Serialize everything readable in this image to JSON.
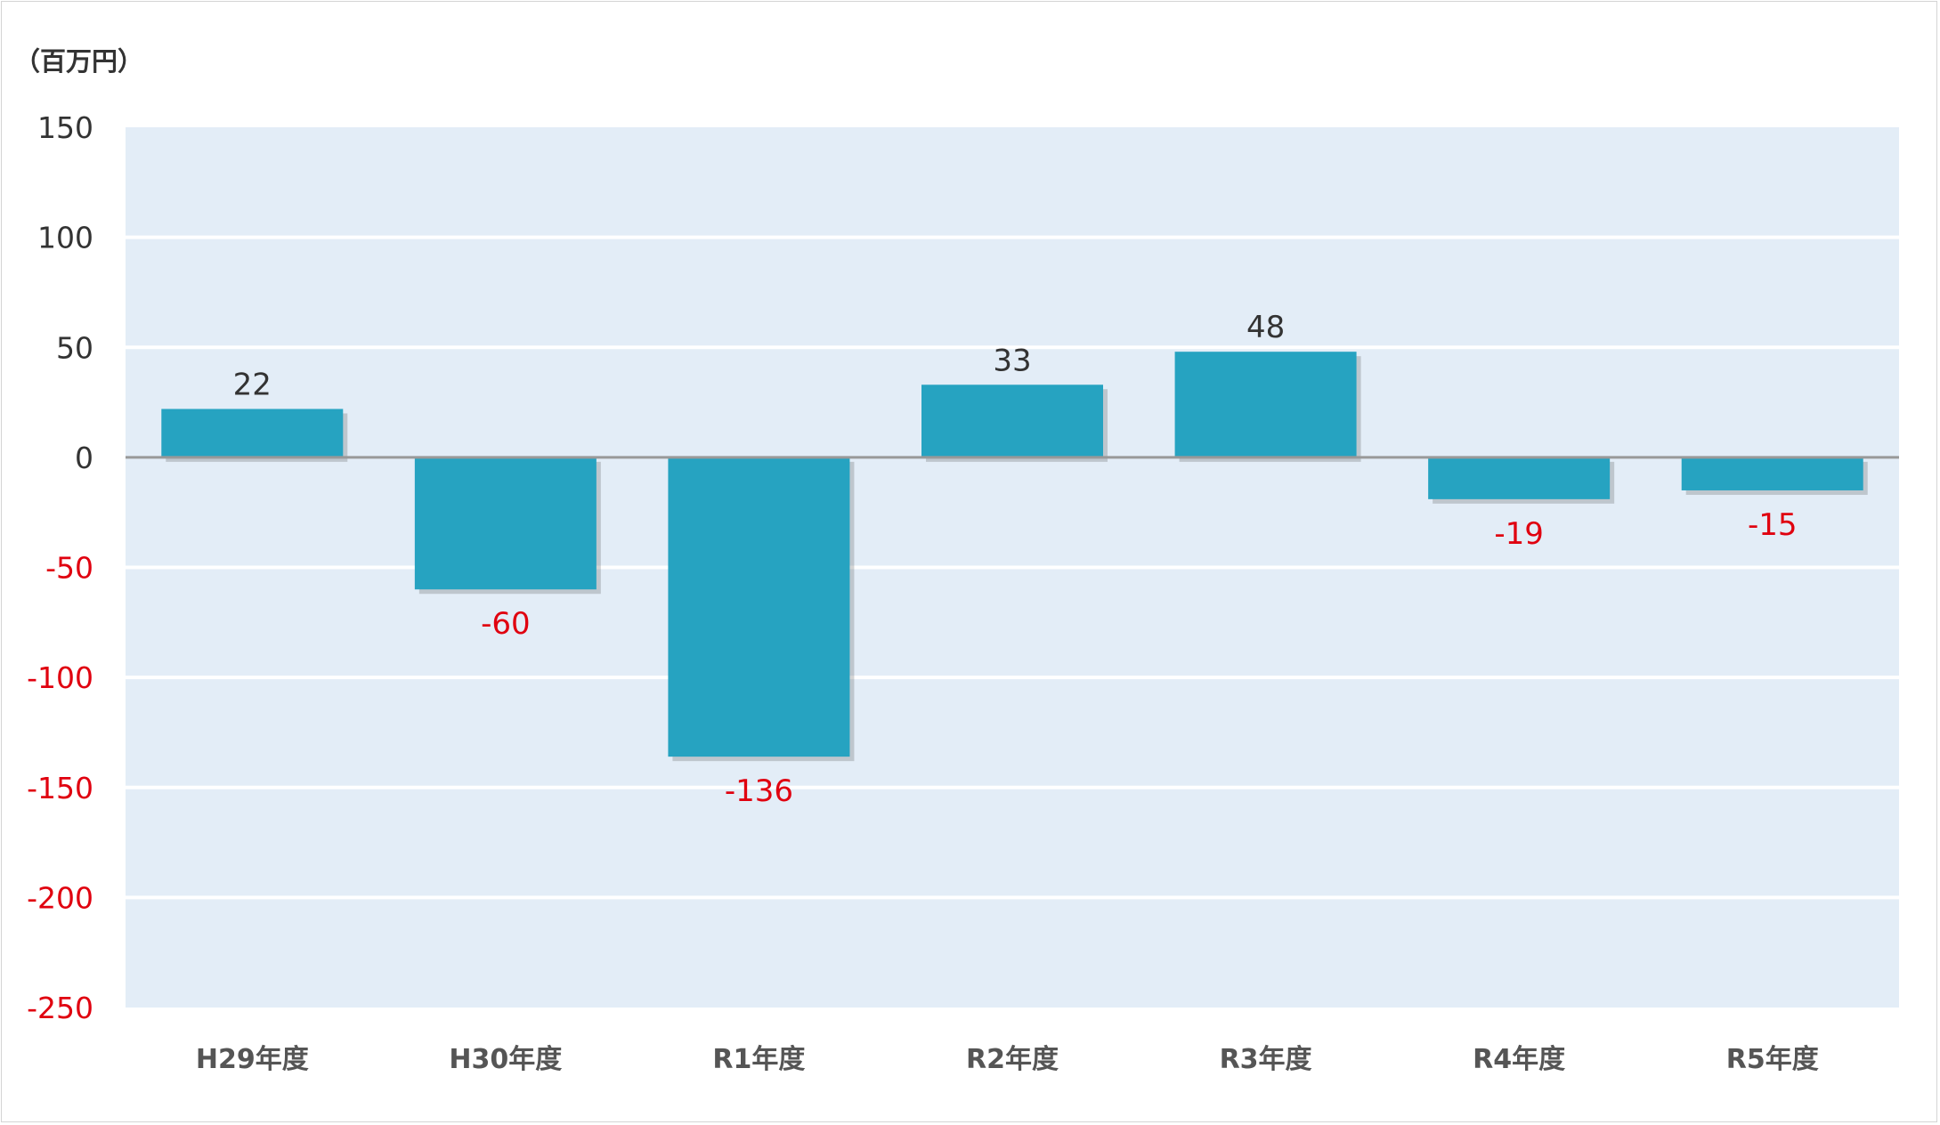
{
  "chart_data": {
    "type": "bar",
    "unit_label": "（百万円）",
    "categories": [
      "H29年度",
      "H30年度",
      "R1年度",
      "R2年度",
      "R3年度",
      "R4年度",
      "R5年度"
    ],
    "values": [
      22,
      -60,
      -136,
      33,
      48,
      -19,
      -15
    ],
    "data_labels": [
      "22",
      "-60",
      "-136",
      "33",
      "48",
      "-19",
      "-15"
    ],
    "y_ticks": [
      "150",
      "100",
      "50",
      "0",
      "-50",
      "-100",
      "-150",
      "-200",
      "-250"
    ],
    "ylim": [
      -250,
      150
    ],
    "grid": true,
    "legend": "none",
    "colors": {
      "bar": "#26a3c1",
      "plot_background": "#e3edf7",
      "gridline": "#ffffff",
      "zero_line": "#999999",
      "positive_text": "#333333",
      "negative_text": "#e0000f"
    }
  }
}
